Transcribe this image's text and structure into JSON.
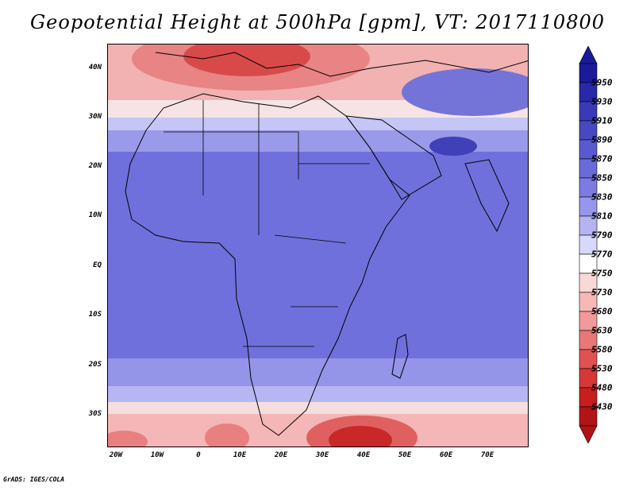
{
  "title": "Geopotential Height at 500hPa [gpm], VT: 2017110800",
  "y_axis_labels": [
    "40N",
    "30N",
    "20N",
    "10N",
    "EQ",
    "10S",
    "20S",
    "30S"
  ],
  "x_axis_labels": [
    "20W",
    "10W",
    "0",
    "10E",
    "20E",
    "30E",
    "40E",
    "50E",
    "60E",
    "70E"
  ],
  "colorbar": {
    "levels": [
      "5950",
      "5930",
      "5910",
      "5890",
      "5870",
      "5850",
      "5830",
      "5810",
      "5790",
      "5770",
      "5750",
      "5730",
      "5680",
      "5630",
      "5580",
      "5530",
      "5480",
      "5430"
    ],
    "colors": [
      "#1a1a9a",
      "#2828a8",
      "#3a3ab8",
      "#4848c0",
      "#5a5ad0",
      "#6a6ad8",
      "#7c7ce0",
      "#9696ea",
      "#b4b4f2",
      "#d8d8fa",
      "#ffffff",
      "#fbd8d8",
      "#f7b8b8",
      "#f09a9a",
      "#e87878",
      "#e05252",
      "#d63838",
      "#c81e1e",
      "#b01414"
    ]
  },
  "footer": "GrADS: IGES/COLA"
}
